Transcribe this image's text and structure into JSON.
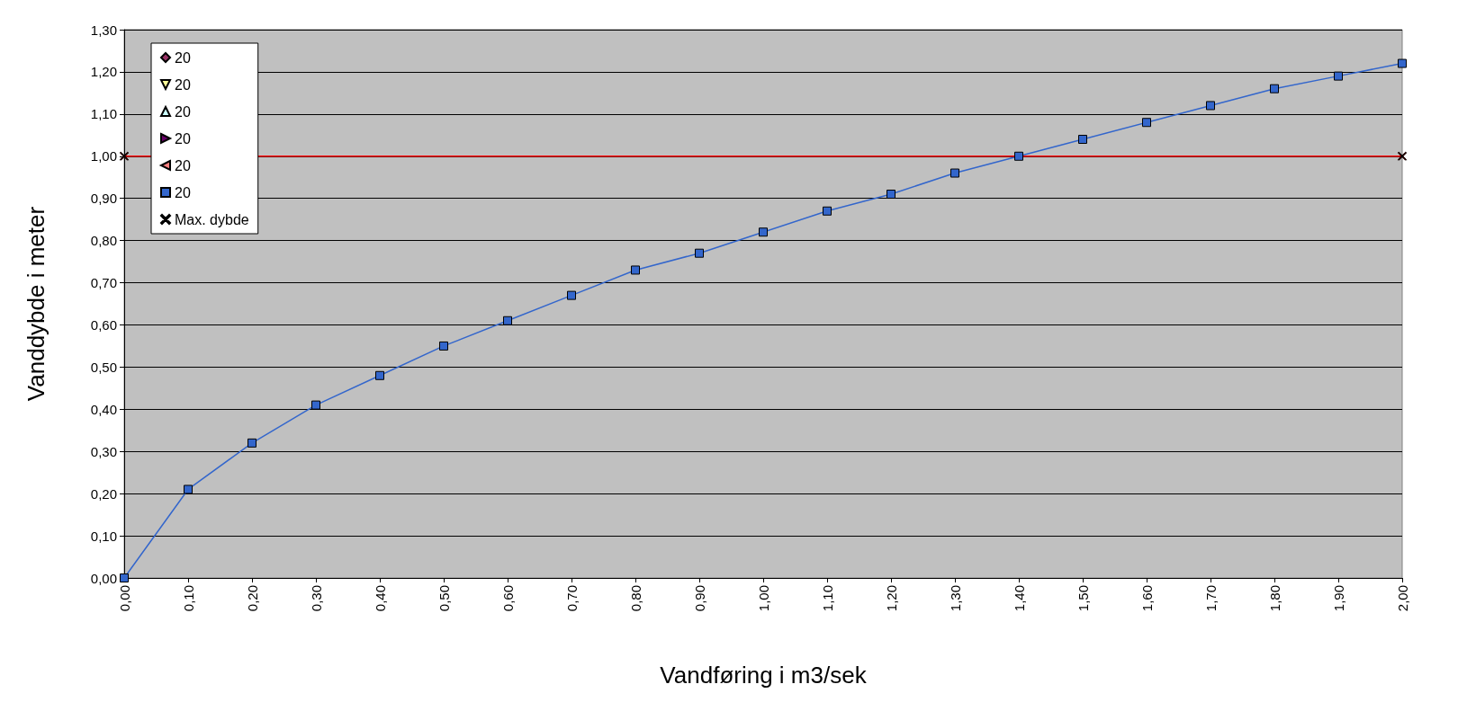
{
  "chart_data": {
    "type": "line",
    "xlabel": "Vandføring i m3/sek",
    "ylabel": "Vanddybde i meter",
    "xlim": [
      0,
      2
    ],
    "ylim": [
      0,
      1.3
    ],
    "xticks": [
      {
        "value": 0,
        "label": "0,00"
      },
      {
        "value": 0.1,
        "label": "0,10"
      },
      {
        "value": 0.2,
        "label": "0,20"
      },
      {
        "value": 0.3,
        "label": "0,30"
      },
      {
        "value": 0.4,
        "label": "0,40"
      },
      {
        "value": 0.5,
        "label": "0,50"
      },
      {
        "value": 0.6,
        "label": "0,60"
      },
      {
        "value": 0.7,
        "label": "0,70"
      },
      {
        "value": 0.8,
        "label": "0,80"
      },
      {
        "value": 0.9,
        "label": "0,90"
      },
      {
        "value": 1,
        "label": "1,00"
      },
      {
        "value": 1.1,
        "label": "1,10"
      },
      {
        "value": 1.2,
        "label": "1,20"
      },
      {
        "value": 1.3,
        "label": "1,30"
      },
      {
        "value": 1.4,
        "label": "1,40"
      },
      {
        "value": 1.5,
        "label": "1,50"
      },
      {
        "value": 1.6,
        "label": "1,60"
      },
      {
        "value": 1.7,
        "label": "1,70"
      },
      {
        "value": 1.8,
        "label": "1,80"
      },
      {
        "value": 1.9,
        "label": "1,90"
      },
      {
        "value": 2,
        "label": "2,00"
      }
    ],
    "yticks": [
      {
        "value": 0,
        "label": "0,00"
      },
      {
        "value": 0.1,
        "label": "0,10"
      },
      {
        "value": 0.2,
        "label": "0,20"
      },
      {
        "value": 0.3,
        "label": "0,30"
      },
      {
        "value": 0.4,
        "label": "0,40"
      },
      {
        "value": 0.5,
        "label": "0,50"
      },
      {
        "value": 0.6,
        "label": "0,60"
      },
      {
        "value": 0.7,
        "label": "0,70"
      },
      {
        "value": 0.8,
        "label": "0,80"
      },
      {
        "value": 0.9,
        "label": "0,90"
      },
      {
        "value": 1,
        "label": "1,00"
      },
      {
        "value": 1.1,
        "label": "1,10"
      },
      {
        "value": 1.2,
        "label": "1,20"
      },
      {
        "value": 1.3,
        "label": "1,30"
      }
    ],
    "grid": "y",
    "legend": "top left",
    "x": [
      0,
      0.1,
      0.2,
      0.3,
      0.4,
      0.5,
      0.6,
      0.7,
      0.8,
      0.9,
      1,
      1.1,
      1.2,
      1.3,
      1.4,
      1.5,
      1.6,
      1.7,
      1.8,
      1.9,
      2
    ],
    "series": [
      {
        "name": "20",
        "color": "#993366",
        "marker": "diamond",
        "values": [
          null,
          null,
          null,
          null,
          null,
          null,
          null,
          null,
          null,
          null,
          null,
          null,
          null,
          null,
          null,
          null,
          null,
          null,
          null,
          null,
          null
        ]
      },
      {
        "name": "20",
        "color": "#ffff99",
        "marker": "triangle-down",
        "values": [
          null,
          null,
          null,
          null,
          null,
          null,
          null,
          null,
          null,
          null,
          null,
          null,
          null,
          null,
          null,
          null,
          null,
          null,
          null,
          null,
          null
        ]
      },
      {
        "name": "20",
        "color": "#ccffff",
        "marker": "triangle",
        "values": [
          null,
          null,
          null,
          null,
          null,
          null,
          null,
          null,
          null,
          null,
          null,
          null,
          null,
          null,
          null,
          null,
          null,
          null,
          null,
          null,
          null
        ]
      },
      {
        "name": "20",
        "color": "#660066",
        "marker": "triangle-right",
        "values": [
          null,
          null,
          null,
          null,
          null,
          null,
          null,
          null,
          null,
          null,
          null,
          null,
          null,
          null,
          null,
          null,
          null,
          null,
          null,
          null,
          null
        ]
      },
      {
        "name": "20",
        "color": "#ff8080",
        "marker": "triangle-left",
        "values": [
          null,
          null,
          null,
          null,
          null,
          null,
          null,
          null,
          null,
          null,
          null,
          null,
          null,
          null,
          null,
          null,
          null,
          null,
          null,
          null,
          null
        ]
      },
      {
        "name": "20",
        "color": "#3366cc",
        "marker": "square",
        "values": [
          0,
          0.21,
          0.32,
          0.41,
          0.48,
          0.55,
          0.61,
          0.67,
          0.73,
          0.77,
          0.82,
          0.87,
          0.91,
          0.96,
          1,
          1.04,
          1.08,
          1.12,
          1.16,
          1.19,
          1.22
        ]
      },
      {
        "name": "Max. dybde",
        "color": "#ff0000",
        "marker": "cross",
        "x": [
          0,
          2
        ],
        "values": [
          1,
          1
        ]
      }
    ]
  }
}
